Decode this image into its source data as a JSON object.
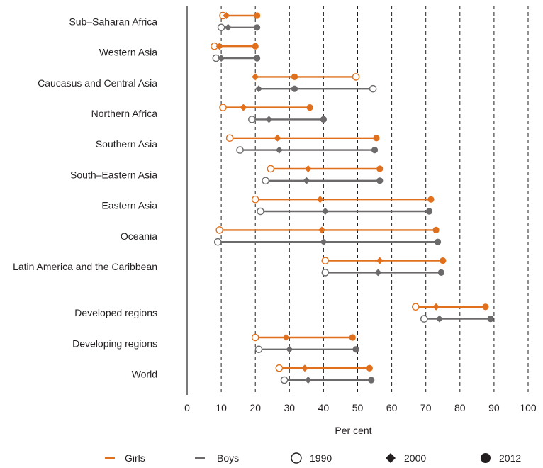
{
  "colors": {
    "girls": "#e0701d",
    "boys": "#6d6a6b",
    "grid": "#231f20",
    "text": "#231f20"
  },
  "chart_data": {
    "type": "dumbbell",
    "title": "",
    "xlabel": "Per cent",
    "ylabel": "",
    "xlim": [
      0,
      100
    ],
    "xticks": [
      "0",
      "10",
      "20",
      "30",
      "40",
      "50",
      "60",
      "70",
      "80",
      "90",
      "100"
    ],
    "grid": "vertical dashed",
    "legend_position": "bottom",
    "legend": {
      "series": [
        {
          "key": "girls",
          "label": "Girls"
        },
        {
          "key": "boys",
          "label": "Boys"
        }
      ],
      "markers": [
        {
          "key": "1990",
          "label": "1990",
          "shape": "open-circle"
        },
        {
          "key": "2000",
          "label": "2000",
          "shape": "diamond"
        },
        {
          "key": "2012",
          "label": "2012",
          "shape": "filled-circle"
        }
      ]
    },
    "regions": [
      {
        "name": "Sub–Saharan Africa",
        "girls": {
          "1990": 10.5,
          "2000": 11.5,
          "2012": 20.5
        },
        "boys": {
          "1990": 10,
          "2000": 12,
          "2012": 20.5
        }
      },
      {
        "name": "Western Asia",
        "girls": {
          "1990": 8,
          "2000": 9.5,
          "2012": 20
        },
        "boys": {
          "1990": 8.5,
          "2000": 10,
          "2012": 20.5
        }
      },
      {
        "name": "Caucasus and Central Asia",
        "girls": {
          "1990": 49.5,
          "2000": 20,
          "2012": 31.5
        },
        "boys": {
          "1990": 54.5,
          "2000": 21,
          "2012": 31.5
        }
      },
      {
        "name": "Northern Africa",
        "girls": {
          "1990": 10.5,
          "2000": 16.5,
          "2012": 36
        },
        "boys": {
          "1990": 19,
          "2000": 24,
          "2012": 40
        }
      },
      {
        "name": "Southern Asia",
        "girls": {
          "1990": 12.5,
          "2000": 26.5,
          "2012": 55.5
        },
        "boys": {
          "1990": 15.5,
          "2000": 27,
          "2012": 55
        }
      },
      {
        "name": "South–Eastern Asia",
        "girls": {
          "1990": 24.5,
          "2000": 35.5,
          "2012": 56.5
        },
        "boys": {
          "1990": 23,
          "2000": 35,
          "2012": 56.5
        }
      },
      {
        "name": "Eastern Asia",
        "girls": {
          "1990": 20,
          "2000": 39,
          "2012": 71.5
        },
        "boys": {
          "1990": 21.5,
          "2000": 40.5,
          "2012": 71
        }
      },
      {
        "name": "Oceania",
        "girls": {
          "1990": 9.5,
          "2000": 39.5,
          "2012": 73
        },
        "boys": {
          "1990": 9,
          "2000": 40,
          "2012": 73.5
        }
      },
      {
        "name": "Latin America and the Caribbean",
        "girls": {
          "1990": 40.5,
          "2000": 56.5,
          "2012": 75
        },
        "boys": {
          "1990": 40.5,
          "2000": 56,
          "2012": 74.5
        }
      },
      {
        "name": "Developed regions",
        "girls": {
          "1990": 67,
          "2000": 73,
          "2012": 87.5
        },
        "boys": {
          "1990": 69.5,
          "2000": 74,
          "2012": 89
        }
      },
      {
        "name": "Developing regions",
        "girls": {
          "1990": 20,
          "2000": 29,
          "2012": 48.5
        },
        "boys": {
          "1990": 21,
          "2000": 30,
          "2012": 49.5
        }
      },
      {
        "name": "World",
        "girls": {
          "1990": 27,
          "2000": 34.5,
          "2012": 53.5
        },
        "boys": {
          "1990": 28.5,
          "2000": 35.5,
          "2012": 54
        }
      }
    ]
  }
}
